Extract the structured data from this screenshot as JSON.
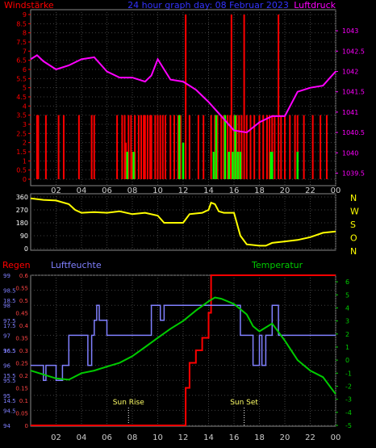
{
  "header": {
    "left_title": "Windstärke",
    "center_title": "24 hour graph day: 08 Februar 2023",
    "right_title": "Luftdruck"
  },
  "bottom_labels": {
    "regen": "Regen",
    "luftfeuchte": "Luftfeuchte",
    "temperatur": "Temperatur",
    "sun_rise": "Sun Rise",
    "sun_set": "Sun Set"
  },
  "colors": {
    "pressure": "#ff00ff",
    "wind": "#ff0000",
    "gust": "#00ff00",
    "direction": "#ffff00",
    "humidity": "#8080ff",
    "temperature": "#00cc00",
    "rain": "#ff0000",
    "grid": "#404040",
    "frame": "#888888"
  },
  "x_ticks": [
    "02",
    "04",
    "06",
    "08",
    "10",
    "12",
    "14",
    "16",
    "18",
    "20",
    "22",
    "00"
  ],
  "chart_data": [
    {
      "type": "bar",
      "panel": "wind-pressure",
      "y_left_label": "Windstärke",
      "y_left_ticks": [
        "0",
        "0.5",
        "1",
        "1.5",
        "2",
        "2.5",
        "3",
        "3.5",
        "4",
        "4.5",
        "5",
        "5.5",
        "6",
        "6.5",
        "7",
        "7.5",
        "8",
        "8.5",
        "9"
      ],
      "y_left_range": [
        0,
        9
      ],
      "y_right_label": "Luftdruck",
      "y_right_ticks": [
        "1039.5",
        "1040",
        "1040.5",
        "1041",
        "1041.5",
        "1042",
        "1042.5",
        "1043"
      ],
      "y_right_range": [
        1039.35,
        1043.4
      ],
      "x_range_hours": [
        0,
        24
      ],
      "series": [
        {
          "name": "Windstärke",
          "kind": "bars",
          "points": [
            [
              0.5,
              3.5
            ],
            [
              0.6,
              3.5
            ],
            [
              1.2,
              3.5
            ],
            [
              2.2,
              3.5
            ],
            [
              2.6,
              3.5
            ],
            [
              3.8,
              3.5
            ],
            [
              4.8,
              3.5
            ],
            [
              5.0,
              3.5
            ],
            [
              6.8,
              3.5
            ],
            [
              7.2,
              3.5
            ],
            [
              7.4,
              3.5
            ],
            [
              7.5,
              2
            ],
            [
              7.7,
              3.5
            ],
            [
              7.9,
              3.5
            ],
            [
              8.0,
              1.5
            ],
            [
              8.2,
              3.5
            ],
            [
              8.5,
              3.5
            ],
            [
              8.7,
              3.5
            ],
            [
              8.9,
              3.5
            ],
            [
              9.0,
              3.5
            ],
            [
              9.2,
              3.5
            ],
            [
              9.4,
              3.5
            ],
            [
              9.5,
              3.5
            ],
            [
              9.8,
              3.5
            ],
            [
              10.0,
              3.5
            ],
            [
              10.2,
              3.5
            ],
            [
              10.4,
              3.5
            ],
            [
              10.6,
              3.5
            ],
            [
              11.0,
              3.5
            ],
            [
              11.3,
              3.5
            ],
            [
              11.6,
              3.5
            ],
            [
              11.8,
              3.5
            ],
            [
              12.0,
              2
            ],
            [
              12.2,
              9
            ],
            [
              12.5,
              3.5
            ],
            [
              13.2,
              3.5
            ],
            [
              13.6,
              3.5
            ],
            [
              14.2,
              3.5
            ],
            [
              14.5,
              3.5
            ],
            [
              14.7,
              3.5
            ],
            [
              15.0,
              3.5
            ],
            [
              15.2,
              3.5
            ],
            [
              15.5,
              3.5
            ],
            [
              15.7,
              3.5
            ],
            [
              15.8,
              9
            ],
            [
              16.0,
              3.5
            ],
            [
              16.2,
              3.5
            ],
            [
              16.4,
              3.5
            ],
            [
              16.6,
              3.5
            ],
            [
              16.8,
              9
            ],
            [
              17.0,
              3.5
            ],
            [
              17.3,
              3.5
            ],
            [
              17.6,
              3.5
            ],
            [
              18.0,
              3.5
            ],
            [
              18.3,
              3.5
            ],
            [
              18.6,
              3.5
            ],
            [
              18.8,
              3.5
            ],
            [
              19.0,
              3.5
            ],
            [
              19.2,
              3.5
            ],
            [
              19.5,
              9
            ],
            [
              19.7,
              3.5
            ],
            [
              20.0,
              3.5
            ],
            [
              20.4,
              3.5
            ],
            [
              20.8,
              3.5
            ],
            [
              21.0,
              3.5
            ],
            [
              21.5,
              3.5
            ],
            [
              22.2,
              3.5
            ],
            [
              22.8,
              3.5
            ],
            [
              23.3,
              3.5
            ]
          ]
        },
        {
          "name": "Böen",
          "kind": "bars",
          "points": [
            [
              7.6,
              1.5
            ],
            [
              8.1,
              1.5
            ],
            [
              11.7,
              3.5
            ],
            [
              12.0,
              2.0
            ],
            [
              14.4,
              1.5
            ],
            [
              14.6,
              3.5
            ],
            [
              15.3,
              3.5
            ],
            [
              15.6,
              1.5
            ],
            [
              15.9,
              1.5
            ],
            [
              16.1,
              3.5
            ],
            [
              16.3,
              1.5
            ],
            [
              16.5,
              1.5
            ],
            [
              18.9,
              1.5
            ],
            [
              19.0,
              1.5
            ],
            [
              21.0,
              1.5
            ]
          ]
        },
        {
          "name": "Luftdruck",
          "kind": "line",
          "points": [
            [
              0,
              1042.3
            ],
            [
              0.5,
              1042.4
            ],
            [
              1,
              1042.25
            ],
            [
              2,
              1042.05
            ],
            [
              3,
              1042.15
            ],
            [
              4,
              1042.3
            ],
            [
              5,
              1042.35
            ],
            [
              6,
              1042.0
            ],
            [
              7,
              1041.85
            ],
            [
              8,
              1041.85
            ],
            [
              9,
              1041.75
            ],
            [
              9.5,
              1041.9
            ],
            [
              10,
              1042.3
            ],
            [
              10.5,
              1042.05
            ],
            [
              11,
              1041.8
            ],
            [
              12,
              1041.75
            ],
            [
              13,
              1041.55
            ],
            [
              14,
              1041.25
            ],
            [
              15,
              1040.9
            ],
            [
              16,
              1040.55
            ],
            [
              17,
              1040.5
            ],
            [
              18,
              1040.75
            ],
            [
              19,
              1040.9
            ],
            [
              20,
              1040.9
            ],
            [
              21,
              1041.5
            ],
            [
              22,
              1041.6
            ],
            [
              23,
              1041.65
            ],
            [
              24,
              1042.0
            ]
          ]
        }
      ]
    },
    {
      "type": "line",
      "panel": "wind-direction",
      "y_ticks": [
        "0",
        "90",
        "180",
        "270",
        "360"
      ],
      "y_range": [
        0,
        360
      ],
      "right_letters": [
        "N",
        "W",
        "S",
        "O",
        "N"
      ],
      "x_range_hours": [
        0,
        24
      ],
      "series": [
        {
          "name": "Windrichtung",
          "points": [
            [
              0,
              350
            ],
            [
              1,
              340
            ],
            [
              2,
              335
            ],
            [
              3,
              310
            ],
            [
              3.5,
              270
            ],
            [
              4,
              250
            ],
            [
              5,
              255
            ],
            [
              6,
              250
            ],
            [
              7,
              260
            ],
            [
              8,
              240
            ],
            [
              9,
              250
            ],
            [
              10,
              230
            ],
            [
              10.5,
              180
            ],
            [
              11,
              180
            ],
            [
              12,
              180
            ],
            [
              12.5,
              240
            ],
            [
              13.5,
              250
            ],
            [
              14,
              270
            ],
            [
              14.2,
              320
            ],
            [
              14.5,
              310
            ],
            [
              14.8,
              260
            ],
            [
              15.2,
              250
            ],
            [
              16,
              250
            ],
            [
              16.5,
              90
            ],
            [
              17,
              30
            ],
            [
              18,
              20
            ],
            [
              18.5,
              20
            ],
            [
              19,
              40
            ],
            [
              20,
              50
            ],
            [
              21,
              60
            ],
            [
              22,
              80
            ],
            [
              23,
              110
            ],
            [
              24,
              120
            ]
          ]
        }
      ]
    },
    {
      "type": "line",
      "panel": "rain-humidity-temperature",
      "regen_ticks": [
        "0",
        "0.05",
        "0.1",
        "0.15",
        "0.2",
        "0.25",
        "0.3",
        "0.35",
        "0.4",
        "0.45",
        "0.5",
        "0.55",
        "0.6"
      ],
      "regen_range": [
        0,
        0.6
      ],
      "humidity_ticks": [
        "94",
        "94.5",
        "95",
        "95.5",
        "96",
        "96.5",
        "97",
        "97.5",
        "98",
        "98.5",
        "99"
      ],
      "humidity_range": [
        94,
        99
      ],
      "secondary_scale_ticks": [
        "14.5",
        "15.5",
        "16.5",
        "17.5",
        "18.5"
      ],
      "temperature_ticks": [
        "-5",
        "-4",
        "-3",
        "-2",
        "-1",
        "0",
        "1",
        "2",
        "3",
        "4",
        "5",
        "6"
      ],
      "temperature_range": [
        -5,
        6.5
      ],
      "x_range_hours": [
        0,
        24
      ],
      "series": [
        {
          "name": "Regen",
          "points": [
            [
              0,
              0
            ],
            [
              12,
              0
            ],
            [
              12.2,
              0.15
            ],
            [
              12.5,
              0.25
            ],
            [
              13,
              0.3
            ],
            [
              13.5,
              0.35
            ],
            [
              14,
              0.45
            ],
            [
              14.2,
              0.6
            ],
            [
              24,
              0.6
            ]
          ]
        },
        {
          "name": "Luftfeuchte",
          "points": [
            [
              0,
              96
            ],
            [
              1,
              95.5
            ],
            [
              1.2,
              96
            ],
            [
              1.5,
              96
            ],
            [
              2,
              95.5
            ],
            [
              2.5,
              96
            ],
            [
              3,
              97
            ],
            [
              4,
              97
            ],
            [
              4.5,
              96
            ],
            [
              4.8,
              97
            ],
            [
              5,
              97.5
            ],
            [
              5.2,
              98
            ],
            [
              5.4,
              97.5
            ],
            [
              6,
              97
            ],
            [
              9,
              97
            ],
            [
              9.5,
              98
            ],
            [
              10,
              98
            ],
            [
              10.2,
              97.5
            ],
            [
              10.5,
              98
            ],
            [
              11,
              98
            ],
            [
              12,
              98
            ],
            [
              13,
              98
            ],
            [
              14,
              98
            ],
            [
              16,
              98
            ],
            [
              16.5,
              97
            ],
            [
              17,
              97
            ],
            [
              17.5,
              96
            ],
            [
              18,
              97
            ],
            [
              18.2,
              96
            ],
            [
              18.5,
              97
            ],
            [
              19,
              98
            ],
            [
              19.5,
              97
            ],
            [
              20,
              97
            ],
            [
              24,
              97
            ]
          ]
        },
        {
          "name": "Temperatur",
          "points": [
            [
              0,
              -0.8
            ],
            [
              1,
              -1.1
            ],
            [
              2,
              -1.4
            ],
            [
              3,
              -1.5
            ],
            [
              4,
              -1.0
            ],
            [
              5,
              -0.8
            ],
            [
              6,
              -0.5
            ],
            [
              7,
              -0.2
            ],
            [
              8,
              0.3
            ],
            [
              9,
              1.0
            ],
            [
              10,
              1.7
            ],
            [
              11,
              2.4
            ],
            [
              12,
              3.0
            ],
            [
              13,
              3.8
            ],
            [
              14,
              4.5
            ],
            [
              14.5,
              4.8
            ],
            [
              15,
              4.7
            ],
            [
              16,
              4.3
            ],
            [
              17,
              3.5
            ],
            [
              17.5,
              2.6
            ],
            [
              18,
              2.2
            ],
            [
              19,
              2.8
            ],
            [
              20,
              1.5
            ],
            [
              21,
              0.0
            ],
            [
              22,
              -0.8
            ],
            [
              23,
              -1.3
            ],
            [
              24,
              -2.6
            ]
          ]
        }
      ],
      "sun_rise_hour": 7.7,
      "sun_set_hour": 16.8
    }
  ]
}
